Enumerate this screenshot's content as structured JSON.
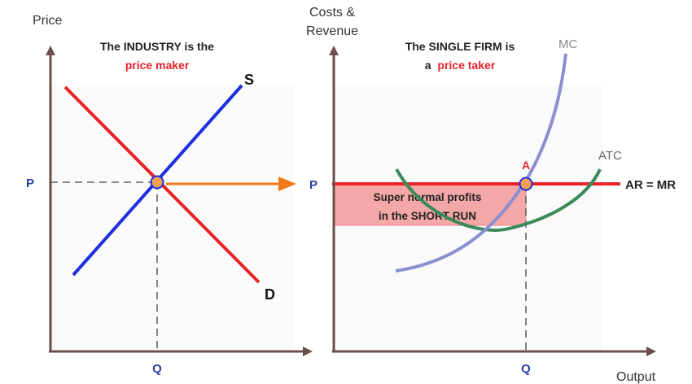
{
  "left_panel": {
    "y_axis_label": "Price",
    "title_line1": "The INDUSTRY is the",
    "title_line2": "price maker",
    "supply_label": "S",
    "demand_label": "D",
    "price_tick": "P",
    "quantity_tick": "Q"
  },
  "right_panel": {
    "y_axis_label_line1": "Costs &",
    "y_axis_label_line2": "Revenue",
    "title_line1": "The SINGLE FIRM is",
    "title_line2_prefix": "a",
    "title_line2_highlight": "price taker",
    "mc_label": "MC",
    "atc_label": "ATC",
    "ar_mr_label": "AR = MR",
    "point_label": "A",
    "profit_line1": "Super normal profits",
    "profit_line2": "in the SHORT RUN",
    "price_tick": "P",
    "quantity_tick": "Q",
    "x_axis_label": "Output"
  },
  "colors": {
    "axis": "#6b4f4a",
    "supply": "#1f2fe0",
    "demand": "#e8222b",
    "mc": "#8a8fd0",
    "atc": "#3a8a5a",
    "ar_mr": "#e8222b",
    "arrow": "#f07a1a",
    "profit_fill": "#f4a7a7",
    "point": "#f0a050",
    "tick_text": "#2b3f9e",
    "highlight_text": "#e8222b",
    "faint_grid": "#cfcfcf"
  }
}
